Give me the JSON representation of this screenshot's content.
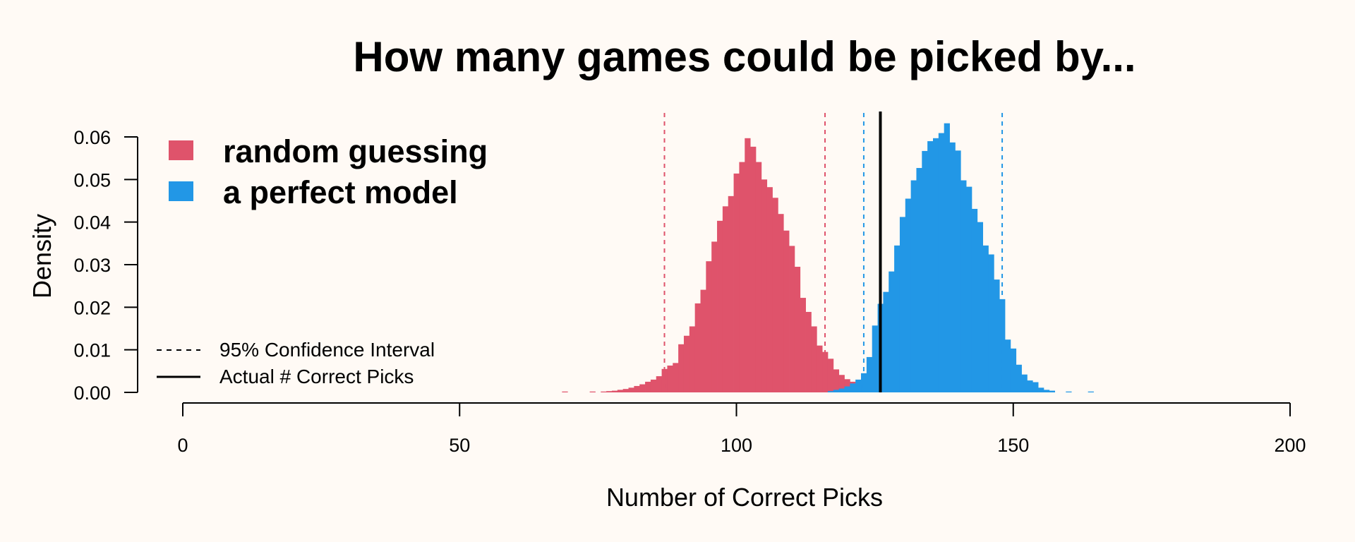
{
  "chart_data": {
    "type": "histogram",
    "title": "How many games could be picked by...",
    "xlabel": "Number of Correct Picks",
    "ylabel": "Density",
    "xlim": [
      0,
      200
    ],
    "ylim": [
      0,
      0.06
    ],
    "x_ticks": [
      "0",
      "50",
      "100",
      "150",
      "200"
    ],
    "y_ticks": [
      "0.00",
      "0.01",
      "0.02",
      "0.03",
      "0.04",
      "0.05",
      "0.06"
    ],
    "grid": false,
    "legend_position": "top-left",
    "bin_width": 1,
    "series": [
      {
        "name": "random guessing",
        "color": "#df536b",
        "bins": [
          [
            69,
            0.0002
          ],
          [
            74,
            0.0002
          ],
          [
            76,
            0.0002
          ],
          [
            77,
            0.0003
          ],
          [
            78,
            0.0004
          ],
          [
            79,
            0.0006
          ],
          [
            80,
            0.0008
          ],
          [
            81,
            0.0011
          ],
          [
            82,
            0.0015
          ],
          [
            83,
            0.0019
          ],
          [
            84,
            0.0025
          ],
          [
            85,
            0.003
          ],
          [
            86,
            0.0038
          ],
          [
            87,
            0.0055
          ],
          [
            88,
            0.0063
          ],
          [
            89,
            0.0069
          ],
          [
            90,
            0.0113
          ],
          [
            91,
            0.0133
          ],
          [
            92,
            0.0155
          ],
          [
            93,
            0.0209
          ],
          [
            94,
            0.0241
          ],
          [
            95,
            0.0308
          ],
          [
            96,
            0.0354
          ],
          [
            97,
            0.0403
          ],
          [
            98,
            0.0437
          ],
          [
            99,
            0.0461
          ],
          [
            100,
            0.0514
          ],
          [
            101,
            0.0541
          ],
          [
            102,
            0.0597
          ],
          [
            103,
            0.0577
          ],
          [
            104,
            0.0541
          ],
          [
            105,
            0.05
          ],
          [
            106,
            0.0482
          ],
          [
            107,
            0.0457
          ],
          [
            108,
            0.0419
          ],
          [
            109,
            0.038
          ],
          [
            110,
            0.0344
          ],
          [
            111,
            0.0295
          ],
          [
            112,
            0.0222
          ],
          [
            113,
            0.0189
          ],
          [
            114,
            0.0155
          ],
          [
            115,
            0.011
          ],
          [
            116,
            0.0095
          ],
          [
            117,
            0.0079
          ],
          [
            118,
            0.0054
          ],
          [
            119,
            0.0041
          ],
          [
            120,
            0.0031
          ],
          [
            121,
            0.0025
          ],
          [
            122,
            0.0019
          ],
          [
            123,
            0.0013
          ],
          [
            124,
            0.0008
          ],
          [
            125,
            0.0005
          ]
        ]
      },
      {
        "name": "a perfect model",
        "color": "#2297e6",
        "bins": [
          [
            117,
            0.0003
          ],
          [
            118,
            0.0006
          ],
          [
            119,
            0.0009
          ],
          [
            120,
            0.0014
          ],
          [
            121,
            0.0021
          ],
          [
            122,
            0.003
          ],
          [
            123,
            0.0045
          ],
          [
            124,
            0.0083
          ],
          [
            125,
            0.0157
          ],
          [
            126,
            0.0208
          ],
          [
            127,
            0.0236
          ],
          [
            128,
            0.0284
          ],
          [
            129,
            0.0345
          ],
          [
            130,
            0.0412
          ],
          [
            131,
            0.0455
          ],
          [
            132,
            0.0498
          ],
          [
            133,
            0.0527
          ],
          [
            134,
            0.0567
          ],
          [
            135,
            0.059
          ],
          [
            136,
            0.0597
          ],
          [
            137,
            0.0609
          ],
          [
            138,
            0.0632
          ],
          [
            139,
            0.0587
          ],
          [
            140,
            0.0568
          ],
          [
            141,
            0.0498
          ],
          [
            142,
            0.0483
          ],
          [
            143,
            0.0431
          ],
          [
            144,
            0.04
          ],
          [
            145,
            0.0345
          ],
          [
            146,
            0.0324
          ],
          [
            147,
            0.0265
          ],
          [
            148,
            0.0219
          ],
          [
            149,
            0.0124
          ],
          [
            150,
            0.0103
          ],
          [
            151,
            0.0065
          ],
          [
            152,
            0.0042
          ],
          [
            153,
            0.0028
          ],
          [
            154,
            0.0024
          ],
          [
            155,
            0.0011
          ],
          [
            156,
            0.0006
          ],
          [
            157,
            0.0004
          ],
          [
            160,
            0.0002
          ],
          [
            164,
            0.0002
          ]
        ]
      }
    ],
    "ci_lines": [
      {
        "series": "random guessing",
        "values": [
          87,
          116
        ],
        "color": "#df536b"
      },
      {
        "series": "a perfect model",
        "values": [
          123,
          148
        ],
        "color": "#2297e6"
      }
    ],
    "actual_value": 126,
    "actual_color": "#000000",
    "legend": {
      "series_entries": [
        "random guessing",
        "a perfect model"
      ],
      "line_entries": [
        {
          "label": "95% Confidence Interval",
          "style": "dashed"
        },
        {
          "label": "Actual # Correct Picks",
          "style": "solid"
        }
      ]
    }
  }
}
